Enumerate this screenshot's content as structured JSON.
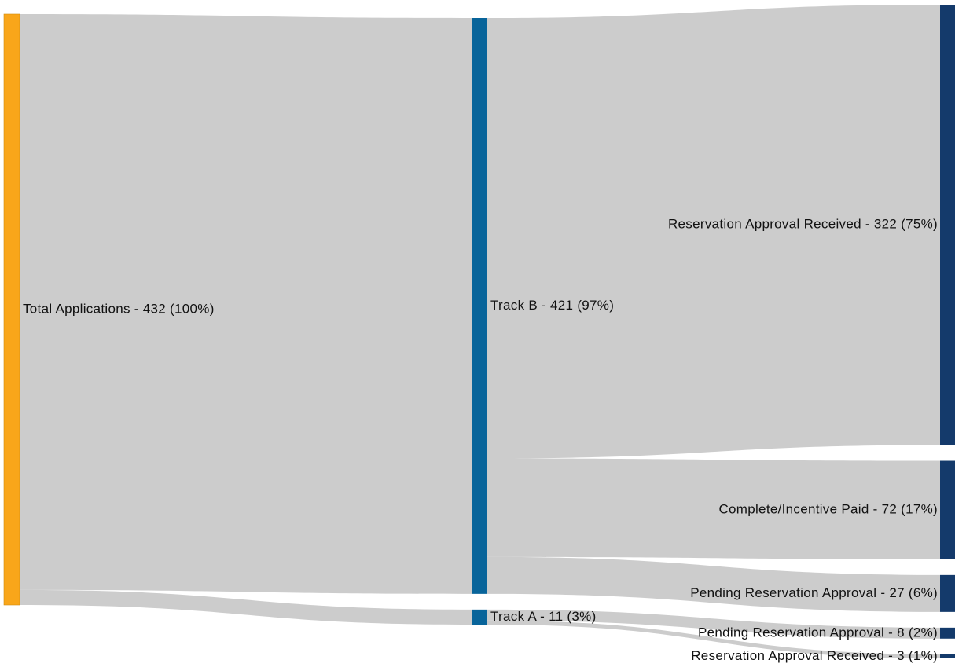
{
  "chart_data": {
    "type": "sankey",
    "colors": {
      "link": "#cccccc",
      "source": "#f9a61a",
      "middle": "#08649a",
      "target": "#143a6b"
    },
    "nodes": [
      {
        "id": "total",
        "label": "Total Applications - 432 (100%)",
        "value": 432,
        "column": 0
      },
      {
        "id": "trackB",
        "label": "Track B - 421 (97%)",
        "value": 421,
        "column": 1
      },
      {
        "id": "trackA",
        "label": "Track A - 11 (3%)",
        "value": 11,
        "column": 1
      },
      {
        "id": "b_rar",
        "label": "Reservation Approval Received - 322 (75%)",
        "value": 322,
        "column": 2
      },
      {
        "id": "b_cip",
        "label": "Complete/Incentive Paid - 72 (17%)",
        "value": 72,
        "column": 2
      },
      {
        "id": "b_pra",
        "label": "Pending Reservation Approval - 27 (6%)",
        "value": 27,
        "column": 2
      },
      {
        "id": "a_pra",
        "label": "Pending Reservation Approval - 8 (2%)",
        "value": 8,
        "column": 2
      },
      {
        "id": "a_rar",
        "label": "Reservation Approval Received - 3 (1%)",
        "value": 3,
        "column": 2
      }
    ],
    "links": [
      {
        "source": "total",
        "target": "trackB",
        "value": 421
      },
      {
        "source": "total",
        "target": "trackA",
        "value": 11
      },
      {
        "source": "trackB",
        "target": "b_rar",
        "value": 322
      },
      {
        "source": "trackB",
        "target": "b_cip",
        "value": 72
      },
      {
        "source": "trackB",
        "target": "b_pra",
        "value": 27
      },
      {
        "source": "trackA",
        "target": "a_pra",
        "value": 8
      },
      {
        "source": "trackA",
        "target": "a_rar",
        "value": 3
      }
    ]
  }
}
